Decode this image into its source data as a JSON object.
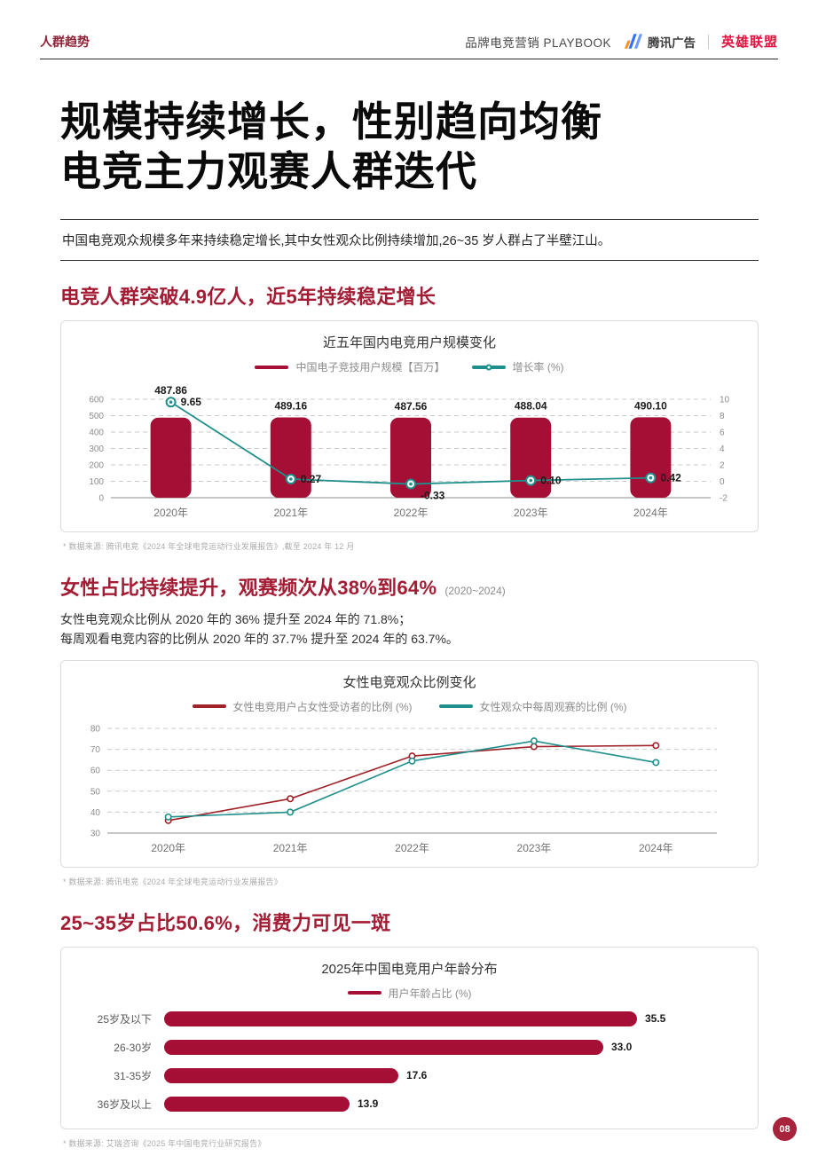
{
  "header": {
    "section_label": "人群趋势",
    "doc_title": "品牌电竞营销 PLAYBOOK",
    "tencent_logo_text": "腾讯广告",
    "lol_logo_text": "英雄联盟"
  },
  "hero": {
    "title_line1": "规模持续增长，性别趋向均衡",
    "title_line2": "电竞主力观赛人群迭代",
    "intro": "中国电竞观众规模多年来持续稳定增长,其中女性观众比例持续增加,26~35 岁人群占了半壁江山。"
  },
  "sections": [
    {
      "heading": "电竞人群突破4.9亿人，近5年持续稳定增长",
      "footnote": "* 数据来源: 腾讯电竞《2024 年全球电竞运动行业发展报告》,截至 2024 年 12 月"
    },
    {
      "heading": "女性占比持续提升，观赛频次从38%到64%",
      "heading_suffix": "(2020~2024)",
      "desc_line1": "女性电竞观众比例从 2020 年的 36% 提升至 2024 年的 71.8%；",
      "desc_line2": "每周观看电竞内容的比例从 2020 年的 37.7% 提升至 2024 年的 63.7%。",
      "footnote": "* 数据来源: 腾讯电竞《2024 年全球电竞运动行业发展报告》"
    },
    {
      "heading": "25~35岁占比50.6%，消费力可见一斑",
      "footnote": "* 数据来源: 艾瑞咨询《2025 年中国电竞行业研究报告》"
    }
  ],
  "page_number": "08",
  "colors": {
    "heading_red": "#a31c33",
    "bar_red": "#a50f35",
    "line_red": "#a02128",
    "teal": "#1f8f8b",
    "lol_red": "#e2123f",
    "badge_red": "#a8243c"
  },
  "chart_data": [
    {
      "type": "combo",
      "title": "近五年国内电竞用户规模变化",
      "categories": [
        "2020年",
        "2021年",
        "2022年",
        "2023年",
        "2024年"
      ],
      "bar_series": {
        "name": "中国电子竞技用户规模【百万】",
        "values": [
          487.86,
          489.16,
          487.56,
          488.04,
          490.1
        ],
        "color": "#a50f35"
      },
      "line_series": {
        "name": "增长率 (%)",
        "values": [
          9.65,
          0.27,
          -0.33,
          0.1,
          0.42
        ],
        "color": "#1f8f8b"
      },
      "left_axis": {
        "min": 0,
        "max": 600,
        "step": 100
      },
      "right_axis": {
        "min": -2,
        "max": 10,
        "step": 2
      },
      "grid": "dashed horizontal",
      "legend_position": "top"
    },
    {
      "type": "line",
      "title": "女性电竞观众比例变化",
      "categories": [
        "2020年",
        "2021年",
        "2022年",
        "2023年",
        "2024年"
      ],
      "series": [
        {
          "name": "女性电竞用户占女性受访者的比例 (%)",
          "values": [
            36,
            46.4,
            66.8,
            71.3,
            71.8
          ],
          "color": "#a02128"
        },
        {
          "name": "女性观众中每周观赛的比例 (%)",
          "values": [
            37.7,
            40,
            64.4,
            74,
            63.7
          ],
          "color": "#1f8f8b"
        }
      ],
      "y_axis": {
        "min": 30,
        "max": 80,
        "step": 10
      },
      "grid": "dashed horizontal",
      "legend_position": "top"
    },
    {
      "type": "bar",
      "orientation": "horizontal",
      "title": "2025年中国电竞用户年龄分布",
      "legend": "用户年龄占比 (%)",
      "categories": [
        "25岁及以下",
        "26-30岁",
        "31-35岁",
        "36岁及以上"
      ],
      "values": [
        35.5,
        33.0,
        17.6,
        13.9
      ],
      "xlim": [
        0,
        35.5
      ],
      "color": "#a50f35"
    }
  ]
}
